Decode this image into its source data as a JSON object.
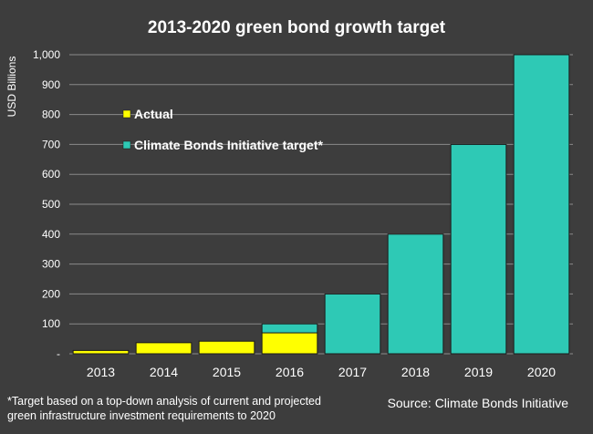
{
  "chart_data": {
    "type": "bar",
    "title": "2013-2020 green bond growth target",
    "ylabel": "USD Billions",
    "xlabel": "",
    "ylim": [
      0,
      1000
    ],
    "yticks": [
      0,
      100,
      200,
      300,
      400,
      500,
      600,
      700,
      800,
      900,
      1000
    ],
    "ytick_labels": [
      "-",
      "100",
      "200",
      "300",
      "400",
      "500",
      "600",
      "700",
      "800",
      "900",
      "1,000"
    ],
    "categories": [
      "2013",
      "2014",
      "2015",
      "2016",
      "2017",
      "2018",
      "2019",
      "2020"
    ],
    "stacked": true,
    "grid": true,
    "legend_position": "top-left",
    "series": [
      {
        "name": "Actual",
        "color": "#ffff00",
        "values": [
          11,
          37,
          42,
          70,
          0,
          0,
          0,
          0
        ]
      },
      {
        "name": "Climate Bonds Initiative target*",
        "color": "#2ec9b5",
        "values": [
          0,
          0,
          0,
          30,
          200,
          400,
          700,
          1000
        ]
      }
    ]
  },
  "footnote": {
    "line1": "*Target based on a top-down analysis of current and projected",
    "line2": "green infrastructure investment requirements to 2020"
  },
  "source": "Source: Climate Bonds Initiative"
}
